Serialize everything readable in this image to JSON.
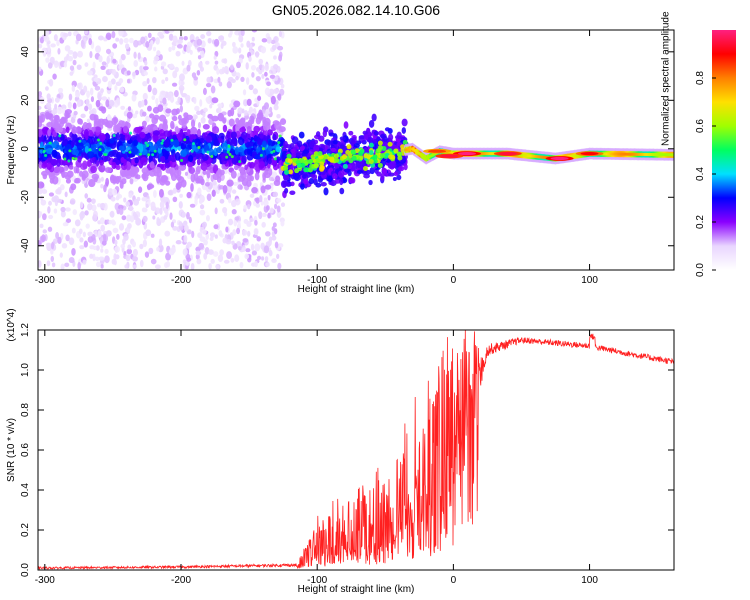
{
  "title": "GN05.2026.082.14.10.G06",
  "chart_data": [
    {
      "type": "heatmap",
      "name": "spectrogram",
      "xlabel": "Height of straight line (km)",
      "ylabel": "Frequency (Hz)",
      "xlim": [
        -305,
        162
      ],
      "ylim": [
        -50,
        49
      ],
      "xticks": [
        -300,
        -200,
        -100,
        0,
        100
      ],
      "xtick_labels": [
        "-300",
        "-200",
        "-100",
        "0",
        "100"
      ],
      "yticks": [
        -40,
        -20,
        0,
        20,
        40
      ],
      "ytick_labels": [
        "-40",
        "-20",
        "0",
        "20",
        "40"
      ],
      "colorbar": {
        "label": "Normalized spectral amplitude",
        "range": [
          0,
          1
        ],
        "ticks": [
          0.0,
          0.2,
          0.4,
          0.6,
          0.8
        ],
        "tick_labels": [
          "0.0",
          "0.2",
          "0.4",
          "0.6",
          "0.8"
        ],
        "stops": [
          "#ffffff",
          "#e9d5ff",
          "#8a00ff",
          "#0000ff",
          "#00e0ff",
          "#00ff60",
          "#a0ff00",
          "#ffe000",
          "#ff8000",
          "#ff0000",
          "#ff2080"
        ]
      },
      "regions": [
        {
          "name": "noise",
          "x": [
            -305,
            -125
          ],
          "freq_center": 0,
          "freq_spread": 49,
          "amplitude": 0.1
        },
        {
          "name": "transition",
          "x": [
            -125,
            -35
          ],
          "freq_center": -3,
          "freq_spread": 8,
          "amplitude": 0.35
        },
        {
          "name": "tone",
          "x": [
            -35,
            162
          ],
          "freq_center": -2.5,
          "freq_spread": 2,
          "amplitude": 0.85
        }
      ],
      "tone_track": [
        {
          "x": -125,
          "freq": -7
        },
        {
          "x": -100,
          "freq": -5
        },
        {
          "x": -75,
          "freq": -3
        },
        {
          "x": -50,
          "freq": -2
        },
        {
          "x": -30,
          "freq": 0
        },
        {
          "x": -20,
          "freq": -4
        },
        {
          "x": -10,
          "freq": -1
        },
        {
          "x": 0,
          "freq": -2
        },
        {
          "x": 40,
          "freq": -2
        },
        {
          "x": 75,
          "freq": -4
        },
        {
          "x": 100,
          "freq": -2
        },
        {
          "x": 162,
          "freq": -2.5
        }
      ],
      "peak_blobs": [
        {
          "x": 10,
          "freq": -2,
          "amp": 1.0
        },
        {
          "x": 40,
          "freq": -2,
          "amp": 0.95
        },
        {
          "x": 78,
          "freq": -4,
          "amp": 1.0
        },
        {
          "x": 100,
          "freq": -2,
          "amp": 0.9
        },
        {
          "x": -3,
          "freq": -3,
          "amp": 0.95
        },
        {
          "x": -12,
          "freq": -1,
          "amp": 0.85
        }
      ]
    },
    {
      "type": "line",
      "name": "snr",
      "xlabel": "Height of straight line (km)",
      "ylabel": "SNR (10 * v/v)",
      "y_multiplier": "(x10^4)",
      "xlim": [
        -305,
        162
      ],
      "ylim": [
        0,
        1.2
      ],
      "xticks": [
        -300,
        -200,
        -100,
        0,
        100
      ],
      "xtick_labels": [
        "-300",
        "-200",
        "-100",
        "0",
        "100"
      ],
      "yticks": [
        0.0,
        0.2,
        0.4,
        0.6,
        0.8,
        1.0,
        1.2
      ],
      "ytick_labels": [
        "0.0",
        "0.2",
        "0.4",
        "0.6",
        "0.8",
        "1.0",
        "1.2"
      ],
      "color": "#ff2020",
      "envelope": [
        {
          "x": -305,
          "base": 0.01,
          "noise": 0.01
        },
        {
          "x": -200,
          "base": 0.015,
          "noise": 0.012
        },
        {
          "x": -115,
          "base": 0.025,
          "noise": 0.015
        },
        {
          "x": -100,
          "base": 0.08,
          "noise": 0.15
        },
        {
          "x": -70,
          "base": 0.12,
          "noise": 0.28
        },
        {
          "x": -50,
          "base": 0.15,
          "noise": 0.3
        },
        {
          "x": -30,
          "base": 0.25,
          "noise": 0.45
        },
        {
          "x": -15,
          "base": 0.35,
          "noise": 0.55
        },
        {
          "x": -5,
          "base": 0.5,
          "noise": 0.55
        },
        {
          "x": 10,
          "base": 0.75,
          "noise": 0.35
        },
        {
          "x": 25,
          "base": 1.1,
          "noise": 0.06
        },
        {
          "x": 50,
          "base": 1.15,
          "noise": 0.03
        },
        {
          "x": 100,
          "base": 1.12,
          "noise": 0.03
        },
        {
          "x": 130,
          "base": 1.08,
          "noise": 0.03
        },
        {
          "x": 162,
          "base": 1.04,
          "noise": 0.03
        }
      ]
    }
  ]
}
